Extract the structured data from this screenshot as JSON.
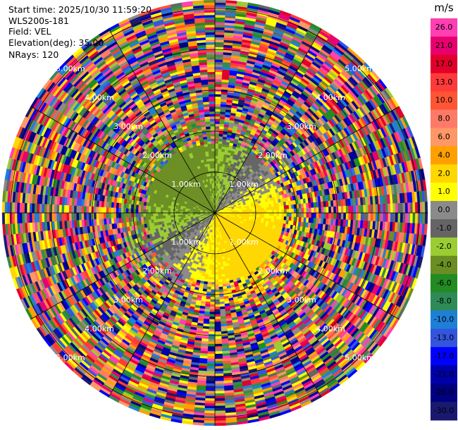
{
  "header": {
    "start_time": "Start time: 2025/10/30 11:59:20",
    "instrument": "WLS200s-181",
    "field": "Field: VEL",
    "elevation": "Elevation(deg): 35.00",
    "nrays": "NRays: 120"
  },
  "chart_data": {
    "type": "heatmap",
    "subtype": "ppi-polar",
    "field": "VEL",
    "elevation_deg": 35.0,
    "n_rays": 120,
    "range_rings": [
      "1.00km",
      "2.00km",
      "3.00km",
      "4.00km",
      "5.00km"
    ],
    "colorbar": {
      "unit": "m/s",
      "ticks": [
        "26.0",
        "21.0",
        "17.0",
        "13.0",
        "10.0",
        "8.0",
        "6.0",
        "4.0",
        "2.0",
        "1.0",
        "0.0",
        "-1.0",
        "-2.0",
        "-4.0",
        "-6.0",
        "-8.0",
        "-10.0",
        "-13.0",
        "-17.0",
        "-21.0",
        "-26.0",
        "-30.0"
      ],
      "colors": [
        "#ff3fb2",
        "#e8006e",
        "#e0002a",
        "#ff3a3a",
        "#ff5535",
        "#ff7a66",
        "#ff9866",
        "#ffa000",
        "#ffd700",
        "#ffff00",
        "#8a8a8a",
        "#646464",
        "#9acd32",
        "#6b8e23",
        "#228b22",
        "#2e8b57",
        "#1e7fd8",
        "#3355dd",
        "#0000ff",
        "#0000aa",
        "#000080",
        "#191970"
      ]
    },
    "grid": true,
    "azimuth_spokes_deg": [
      0,
      30,
      60,
      90,
      120,
      150,
      180,
      210,
      240,
      270,
      300,
      330
    ]
  }
}
